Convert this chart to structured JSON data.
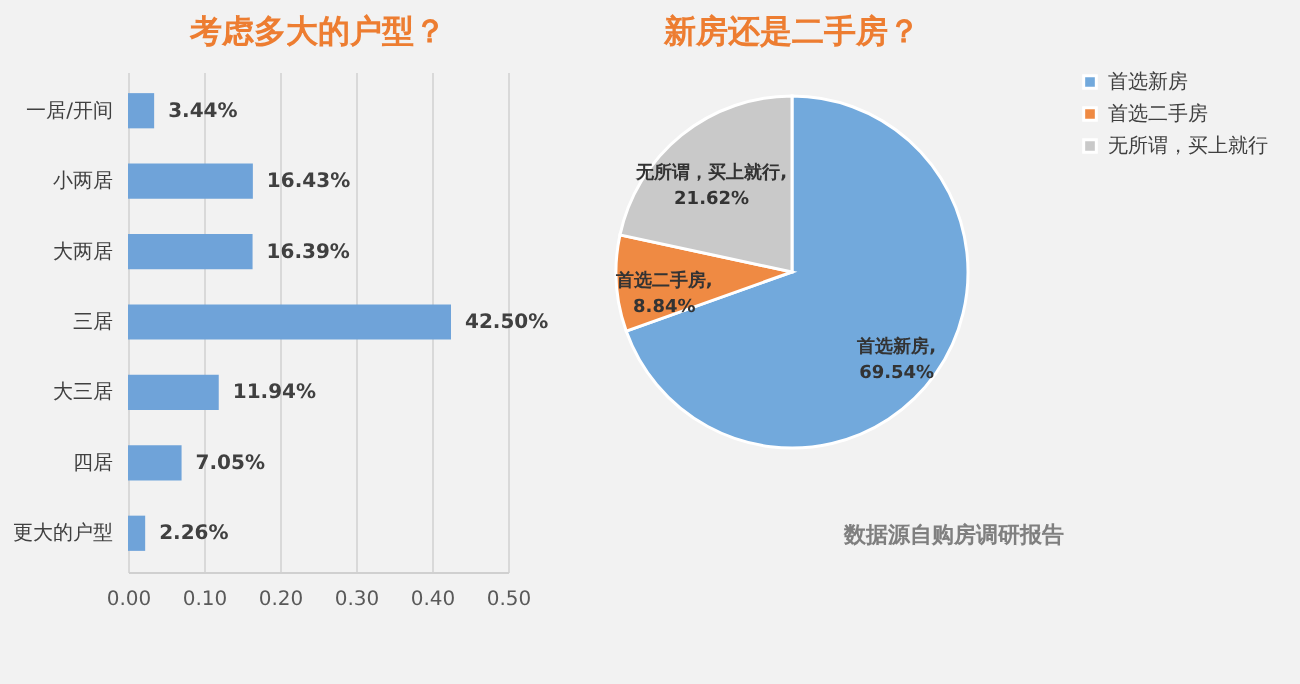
{
  "chart_data": [
    {
      "type": "bar",
      "title": "考虑多大的户型？",
      "orientation": "horizontal",
      "categories": [
        "一居/开间",
        "小两居",
        "大两居",
        "三居",
        "大三居",
        "四居",
        "更大的户型"
      ],
      "values": [
        0.0344,
        0.1643,
        0.1639,
        0.425,
        0.1194,
        0.0705,
        0.0226
      ],
      "value_labels": [
        "3.44%",
        "16.43%",
        "16.39%",
        "42.50%",
        "11.94%",
        "7.05%",
        "2.26%"
      ],
      "color": "#6fa3d9",
      "xlim": [
        0,
        0.5
      ],
      "xticks": [
        {
          "value": 0,
          "label": "0.00"
        },
        {
          "value": 0.1,
          "label": "0.10"
        },
        {
          "value": 0.2,
          "label": "0.20"
        },
        {
          "value": 0.3,
          "label": "0.30"
        },
        {
          "value": 0.4,
          "label": "0.40"
        },
        {
          "value": 0.5,
          "label": "0.50"
        }
      ],
      "grid": "x"
    },
    {
      "type": "pie",
      "title": "新房还是二手房？",
      "categories": [
        "首选新房",
        "首选二手房",
        "无所谓，买上就行"
      ],
      "values": [
        69.54,
        8.84,
        21.62
      ],
      "value_labels": [
        "首选新房,\n69.54%",
        "首选二手房,\n8.84%",
        "无所谓，买上就行,\n21.62%"
      ],
      "colors": [
        "#72a9dc",
        "#ef8a43",
        "#c9c9c9"
      ],
      "legend": "right",
      "annotations": [
        "数据源自购房调研报告"
      ]
    }
  ]
}
